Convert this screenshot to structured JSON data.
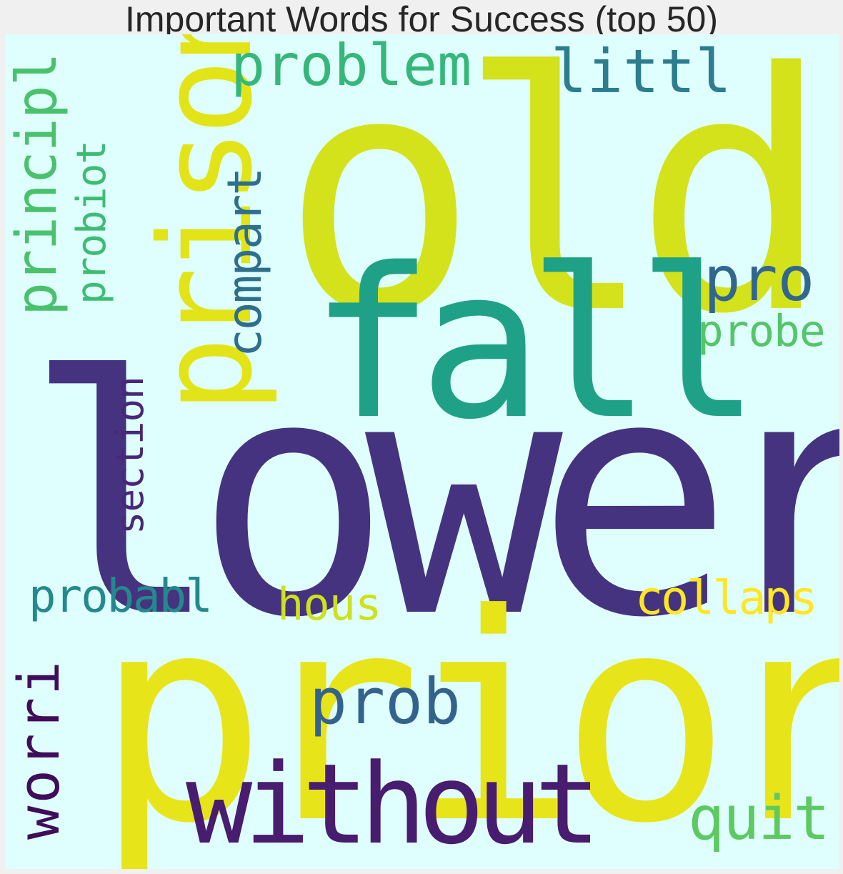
{
  "title": "Important Words for Success (top 50)",
  "cloud": {
    "background": "#dffffe",
    "words": [
      {
        "text": "old",
        "color": "#d4e21b",
        "rotated": false
      },
      {
        "text": "lower",
        "color": "#46337f",
        "rotated": false
      },
      {
        "text": "prior",
        "color": "#e8e41a",
        "rotated": false
      },
      {
        "text": "fall",
        "color": "#1fa187",
        "rotated": false
      },
      {
        "text": "prison",
        "color": "#e2e418",
        "rotated": true
      },
      {
        "text": "problem",
        "color": "#35b779",
        "rotated": false
      },
      {
        "text": "littl",
        "color": "#2c7d8e",
        "rotated": false
      },
      {
        "text": "principl",
        "color": "#4ac16d",
        "rotated": true
      },
      {
        "text": "probiot",
        "color": "#3dbc74",
        "rotated": true
      },
      {
        "text": "compart",
        "color": "#2e6f8e",
        "rotated": true
      },
      {
        "text": "pro",
        "color": "#31678e",
        "rotated": false
      },
      {
        "text": "probe",
        "color": "#54c568",
        "rotated": false
      },
      {
        "text": "section",
        "color": "#482878",
        "rotated": true
      },
      {
        "text": "probabl",
        "color": "#23898e",
        "rotated": false
      },
      {
        "text": "hous",
        "color": "#cde11d",
        "rotated": false
      },
      {
        "text": "collaps",
        "color": "#fde725",
        "rotated": false
      },
      {
        "text": "worri",
        "color": "#3f0d5a",
        "rotated": true
      },
      {
        "text": "prob",
        "color": "#33638d",
        "rotated": false
      },
      {
        "text": "without",
        "color": "#481c6e",
        "rotated": false
      },
      {
        "text": "quit",
        "color": "#5ec962",
        "rotated": false
      }
    ]
  }
}
